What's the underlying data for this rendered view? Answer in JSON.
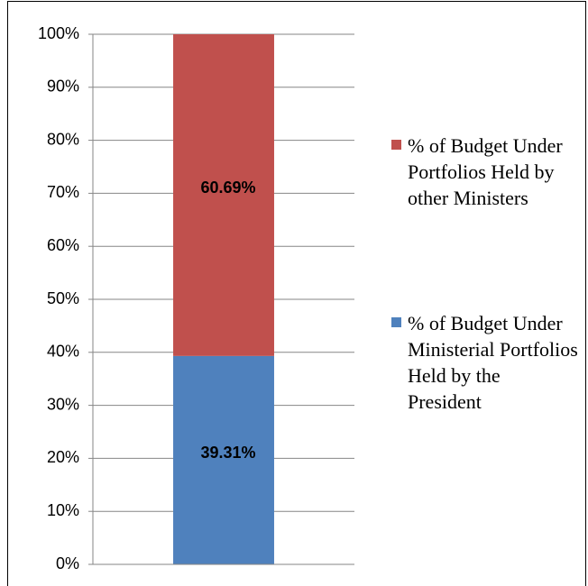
{
  "chart_data": {
    "type": "stacked_bar",
    "categories": [
      null
    ],
    "series": [
      {
        "name": "% of Budget Under Ministerial Portfolios Held by the President",
        "color": "#4f81bd",
        "values": [
          39.31
        ],
        "value_labels": [
          "39.31%"
        ]
      },
      {
        "name": "% of Budget Under Portfolios Held by other Ministers",
        "color": "#c0504d",
        "values": [
          60.69
        ],
        "value_labels": [
          "60.69%"
        ]
      }
    ],
    "ylim": [
      0,
      100
    ],
    "yticks": [
      {
        "value": 0,
        "label": "0%"
      },
      {
        "value": 10,
        "label": "10%"
      },
      {
        "value": 20,
        "label": "20%"
      },
      {
        "value": 30,
        "label": "30%"
      },
      {
        "value": 40,
        "label": "40%"
      },
      {
        "value": 50,
        "label": "50%"
      },
      {
        "value": 60,
        "label": "60%"
      },
      {
        "value": 70,
        "label": "70%"
      },
      {
        "value": 80,
        "label": "80%"
      },
      {
        "value": 90,
        "label": "90%"
      },
      {
        "value": 100,
        "label": "100%"
      }
    ],
    "grid": true,
    "legend": "right"
  }
}
